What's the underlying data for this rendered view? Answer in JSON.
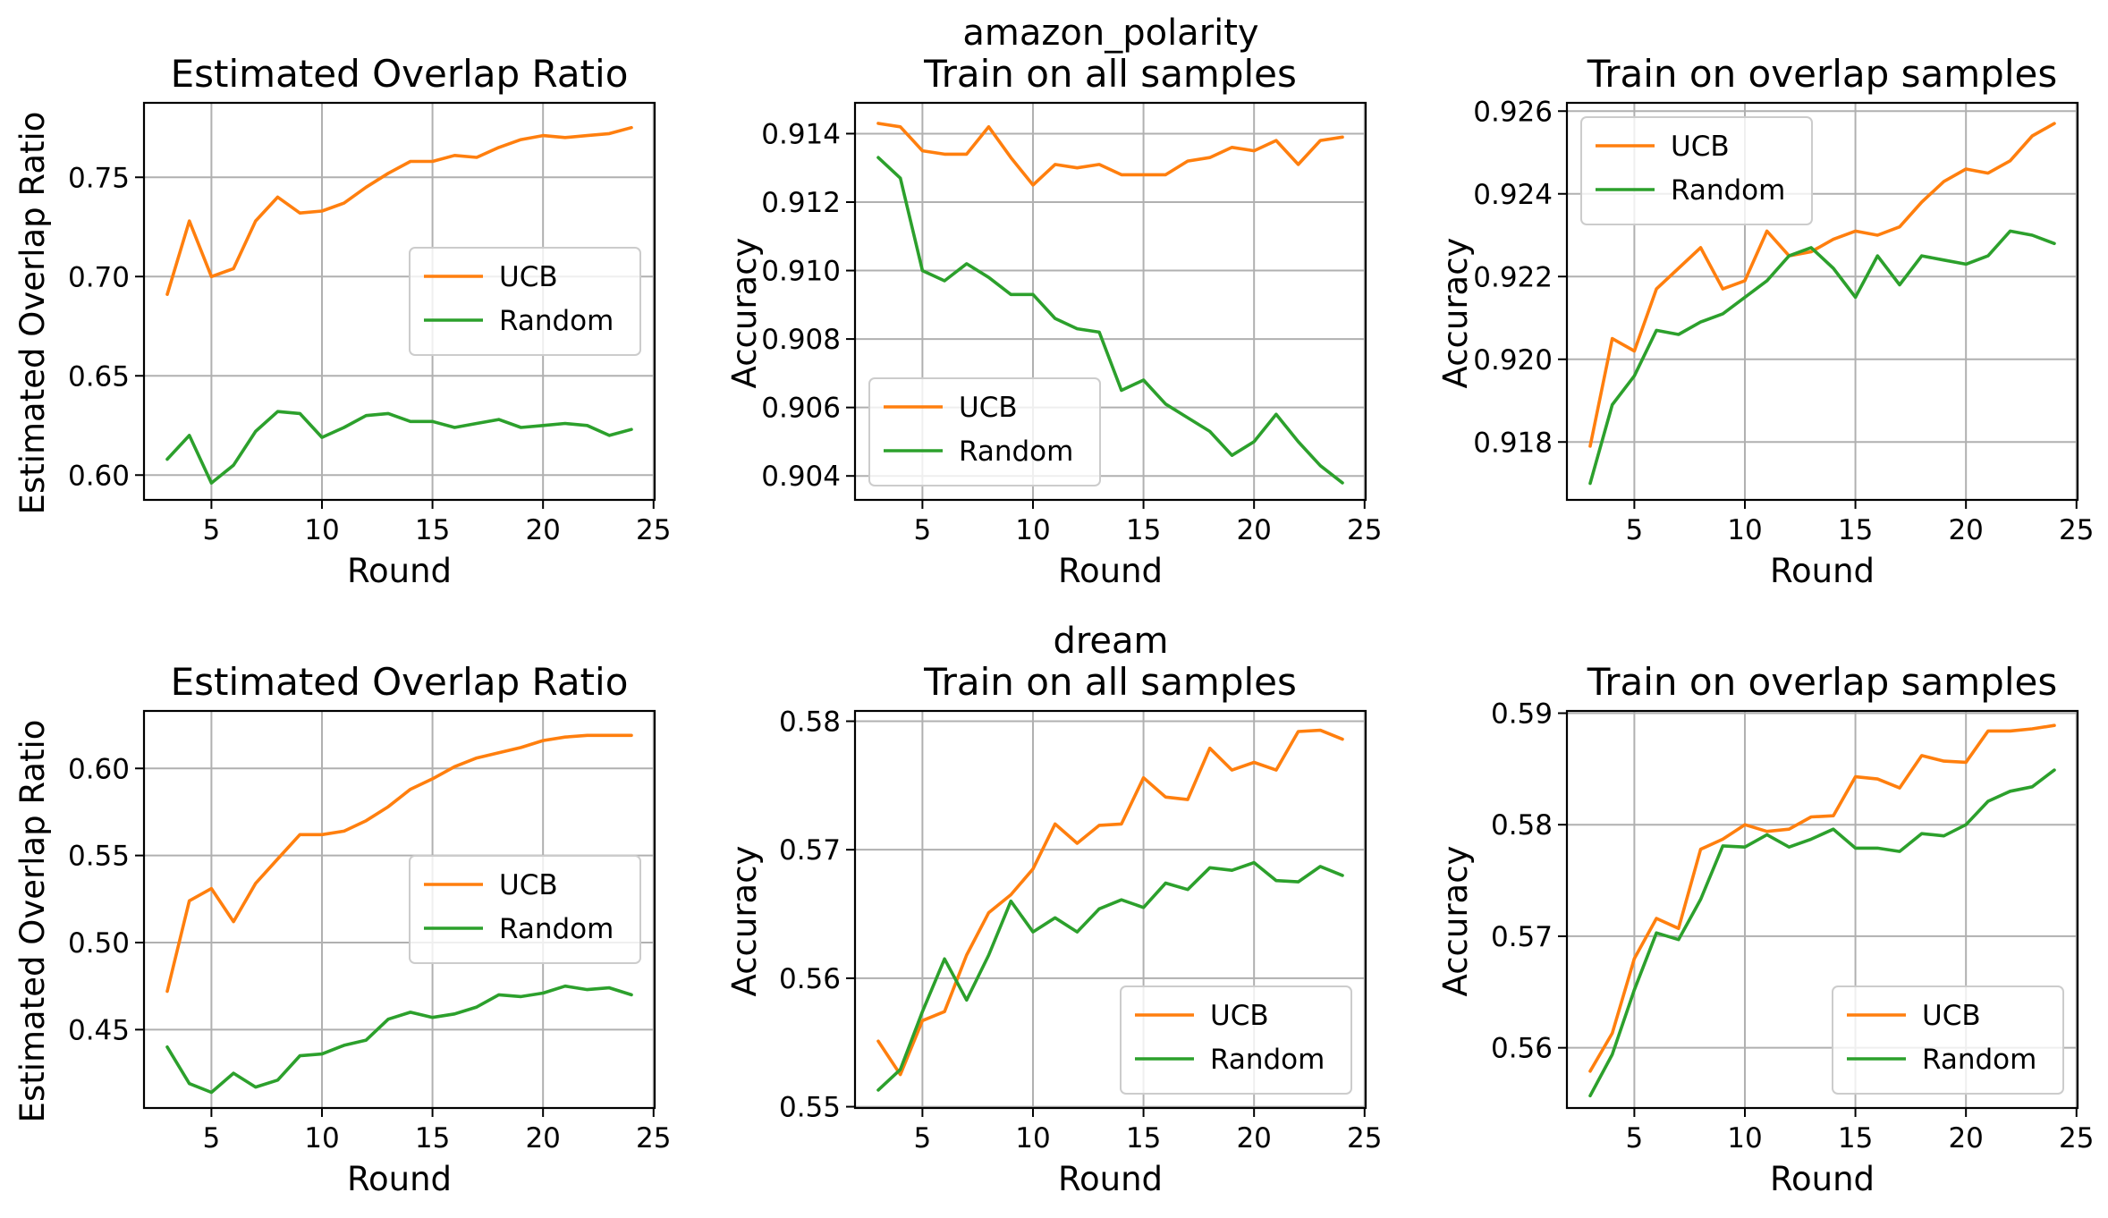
{
  "figure": {
    "row_titles": [
      "amazon_polarity",
      "dream"
    ]
  },
  "chart_data": [
    {
      "type": "line",
      "dataset": "amazon_polarity",
      "title": "Estimated Overlap Ratio",
      "xlabel": "Round",
      "ylabel": "Estimated Overlap Ratio",
      "xlim": [
        1.95,
        25.05
      ],
      "ylim": [
        0.5875,
        0.7875
      ],
      "xticks": [
        5,
        10,
        15,
        20,
        25
      ],
      "yticks": [
        0.6,
        0.65,
        0.7,
        0.75
      ],
      "ytick_labels": [
        "0.60",
        "0.65",
        "0.70",
        "0.75"
      ],
      "grid": true,
      "legend": "center-right",
      "x": [
        3,
        4,
        5,
        6,
        7,
        8,
        9,
        10,
        11,
        12,
        13,
        14,
        15,
        16,
        17,
        18,
        19,
        20,
        21,
        22,
        23,
        24
      ],
      "series": [
        {
          "name": "UCB",
          "color": "#ff7f0e",
          "values": [
            0.691,
            0.728,
            0.7,
            0.704,
            0.728,
            0.74,
            0.732,
            0.733,
            0.737,
            0.745,
            0.752,
            0.758,
            0.758,
            0.761,
            0.76,
            0.765,
            0.769,
            0.771,
            0.77,
            0.771,
            0.772,
            0.775
          ]
        },
        {
          "name": "Random",
          "color": "#2ca02c",
          "values": [
            0.608,
            0.62,
            0.596,
            0.605,
            0.622,
            0.632,
            0.631,
            0.619,
            0.624,
            0.63,
            0.631,
            0.627,
            0.627,
            0.624,
            0.626,
            0.628,
            0.624,
            0.625,
            0.626,
            0.625,
            0.62,
            0.623
          ]
        }
      ]
    },
    {
      "type": "line",
      "dataset": "amazon_polarity",
      "title": "Train on all samples",
      "xlabel": "Round",
      "ylabel": "Accuracy",
      "xlim": [
        1.95,
        25.05
      ],
      "ylim": [
        0.9033,
        0.9149
      ],
      "xticks": [
        5,
        10,
        15,
        20,
        25
      ],
      "yticks": [
        0.904,
        0.906,
        0.908,
        0.91,
        0.912,
        0.914
      ],
      "ytick_labels": [
        "0.904",
        "0.906",
        "0.908",
        "0.910",
        "0.912",
        "0.914"
      ],
      "grid": true,
      "legend": "lower-left",
      "x": [
        3,
        4,
        5,
        6,
        7,
        8,
        9,
        10,
        11,
        12,
        13,
        14,
        15,
        16,
        17,
        18,
        19,
        20,
        21,
        22,
        23,
        24
      ],
      "series": [
        {
          "name": "UCB",
          "color": "#ff7f0e",
          "values": [
            0.9143,
            0.9142,
            0.9135,
            0.9134,
            0.9134,
            0.9142,
            0.9133,
            0.9125,
            0.9131,
            0.913,
            0.9131,
            0.9128,
            0.9128,
            0.9128,
            0.9132,
            0.9133,
            0.9136,
            0.9135,
            0.9138,
            0.9131,
            0.9138,
            0.9139
          ]
        },
        {
          "name": "Random",
          "color": "#2ca02c",
          "values": [
            0.9133,
            0.9127,
            0.91,
            0.9097,
            0.9102,
            0.9098,
            0.9093,
            0.9093,
            0.9086,
            0.9083,
            0.9082,
            0.9065,
            0.9068,
            0.9061,
            0.9057,
            0.9053,
            0.9046,
            0.905,
            0.9058,
            0.905,
            0.9043,
            0.9038
          ]
        }
      ]
    },
    {
      "type": "line",
      "dataset": "amazon_polarity",
      "title": "Train on overlap samples",
      "xlabel": "Round",
      "ylabel": "Accuracy",
      "xlim": [
        1.95,
        25.05
      ],
      "ylim": [
        0.9166,
        0.9262
      ],
      "xticks": [
        5,
        10,
        15,
        20,
        25
      ],
      "yticks": [
        0.918,
        0.92,
        0.922,
        0.924,
        0.926
      ],
      "ytick_labels": [
        "0.918",
        "0.920",
        "0.922",
        "0.924",
        "0.926"
      ],
      "grid": true,
      "legend": "upper-left",
      "x": [
        3,
        4,
        5,
        6,
        7,
        8,
        9,
        10,
        11,
        12,
        13,
        14,
        15,
        16,
        17,
        18,
        19,
        20,
        21,
        22,
        23,
        24
      ],
      "series": [
        {
          "name": "UCB",
          "color": "#ff7f0e",
          "values": [
            0.9179,
            0.9205,
            0.9202,
            0.9217,
            0.9222,
            0.9227,
            0.9217,
            0.9219,
            0.9231,
            0.9225,
            0.9226,
            0.9229,
            0.9231,
            0.923,
            0.9232,
            0.9238,
            0.9243,
            0.9246,
            0.9245,
            0.9248,
            0.9254,
            0.9257
          ]
        },
        {
          "name": "Random",
          "color": "#2ca02c",
          "values": [
            0.917,
            0.9189,
            0.9196,
            0.9207,
            0.9206,
            0.9209,
            0.9211,
            0.9215,
            0.9219,
            0.9225,
            0.9227,
            0.9222,
            0.9215,
            0.9225,
            0.9218,
            0.9225,
            0.9224,
            0.9223,
            0.9225,
            0.9231,
            0.923,
            0.9228
          ]
        }
      ]
    },
    {
      "type": "line",
      "dataset": "dream",
      "title": "Estimated Overlap Ratio",
      "xlabel": "Round",
      "ylabel": "Estimated Overlap Ratio",
      "xlim": [
        1.95,
        25.05
      ],
      "ylim": [
        0.405,
        0.633
      ],
      "xticks": [
        5,
        10,
        15,
        20,
        25
      ],
      "yticks": [
        0.45,
        0.5,
        0.55,
        0.6
      ],
      "ytick_labels": [
        "0.45",
        "0.50",
        "0.55",
        "0.60"
      ],
      "grid": true,
      "legend": "center-right",
      "x": [
        3,
        4,
        5,
        6,
        7,
        8,
        9,
        10,
        11,
        12,
        13,
        14,
        15,
        16,
        17,
        18,
        19,
        20,
        21,
        22,
        23,
        24
      ],
      "series": [
        {
          "name": "UCB",
          "color": "#ff7f0e",
          "values": [
            0.472,
            0.524,
            0.531,
            0.512,
            0.534,
            0.548,
            0.562,
            0.562,
            0.564,
            0.57,
            0.578,
            0.588,
            0.594,
            0.601,
            0.606,
            0.609,
            0.612,
            0.616,
            0.618,
            0.619,
            0.619,
            0.619
          ]
        },
        {
          "name": "Random",
          "color": "#2ca02c",
          "values": [
            0.44,
            0.419,
            0.414,
            0.425,
            0.417,
            0.421,
            0.435,
            0.436,
            0.441,
            0.444,
            0.456,
            0.46,
            0.457,
            0.459,
            0.463,
            0.47,
            0.469,
            0.471,
            0.475,
            0.473,
            0.474,
            0.47
          ]
        }
      ]
    },
    {
      "type": "line",
      "dataset": "dream",
      "title": "Train on all samples",
      "xlabel": "Round",
      "ylabel": "Accuracy",
      "xlim": [
        1.95,
        25.05
      ],
      "ylim": [
        0.5499,
        0.5808
      ],
      "xticks": [
        5,
        10,
        15,
        20,
        25
      ],
      "yticks": [
        0.55,
        0.56,
        0.57,
        0.58
      ],
      "ytick_labels": [
        "0.55",
        "0.56",
        "0.57",
        "0.58"
      ],
      "grid": true,
      "legend": "lower-right",
      "x": [
        3,
        4,
        5,
        6,
        7,
        8,
        9,
        10,
        11,
        12,
        13,
        14,
        15,
        16,
        17,
        18,
        19,
        20,
        21,
        22,
        23,
        24
      ],
      "series": [
        {
          "name": "UCB",
          "color": "#ff7f0e",
          "values": [
            0.5551,
            0.5525,
            0.5567,
            0.5574,
            0.5618,
            0.5651,
            0.5665,
            0.5685,
            0.572,
            0.5705,
            0.5719,
            0.572,
            0.5756,
            0.5741,
            0.5739,
            0.5779,
            0.5762,
            0.5768,
            0.5762,
            0.5792,
            0.5793,
            0.5786
          ]
        },
        {
          "name": "Random",
          "color": "#2ca02c",
          "values": [
            0.5513,
            0.5529,
            0.5574,
            0.5615,
            0.5583,
            0.5618,
            0.566,
            0.5636,
            0.5647,
            0.5636,
            0.5654,
            0.5661,
            0.5655,
            0.5674,
            0.5669,
            0.5686,
            0.5684,
            0.569,
            0.5676,
            0.5675,
            0.5687,
            0.568
          ]
        }
      ]
    },
    {
      "type": "line",
      "dataset": "dream",
      "title": "Train on overlap samples",
      "xlabel": "Round",
      "ylabel": "Accuracy",
      "xlim": [
        1.95,
        25.05
      ],
      "ylim": [
        0.5546,
        0.5902
      ],
      "xticks": [
        5,
        10,
        15,
        20,
        25
      ],
      "yticks": [
        0.56,
        0.57,
        0.58,
        0.59
      ],
      "ytick_labels": [
        "0.56",
        "0.57",
        "0.58",
        "0.59"
      ],
      "grid": true,
      "legend": "lower-right",
      "x": [
        3,
        4,
        5,
        6,
        7,
        8,
        9,
        10,
        11,
        12,
        13,
        14,
        15,
        16,
        17,
        18,
        19,
        20,
        21,
        22,
        23,
        24
      ],
      "series": [
        {
          "name": "UCB",
          "color": "#ff7f0e",
          "values": [
            0.5579,
            0.5613,
            0.568,
            0.5716,
            0.5707,
            0.5778,
            0.5787,
            0.58,
            0.5794,
            0.5796,
            0.5807,
            0.5808,
            0.5843,
            0.5841,
            0.5833,
            0.5862,
            0.5857,
            0.5856,
            0.5884,
            0.5884,
            0.5886,
            0.5889
          ]
        },
        {
          "name": "Random",
          "color": "#2ca02c",
          "values": [
            0.5557,
            0.5594,
            0.5652,
            0.5703,
            0.5697,
            0.5733,
            0.5781,
            0.578,
            0.5791,
            0.578,
            0.5787,
            0.5796,
            0.5779,
            0.5779,
            0.5776,
            0.5792,
            0.579,
            0.58,
            0.5821,
            0.583,
            0.5834,
            0.5849
          ]
        }
      ]
    }
  ]
}
